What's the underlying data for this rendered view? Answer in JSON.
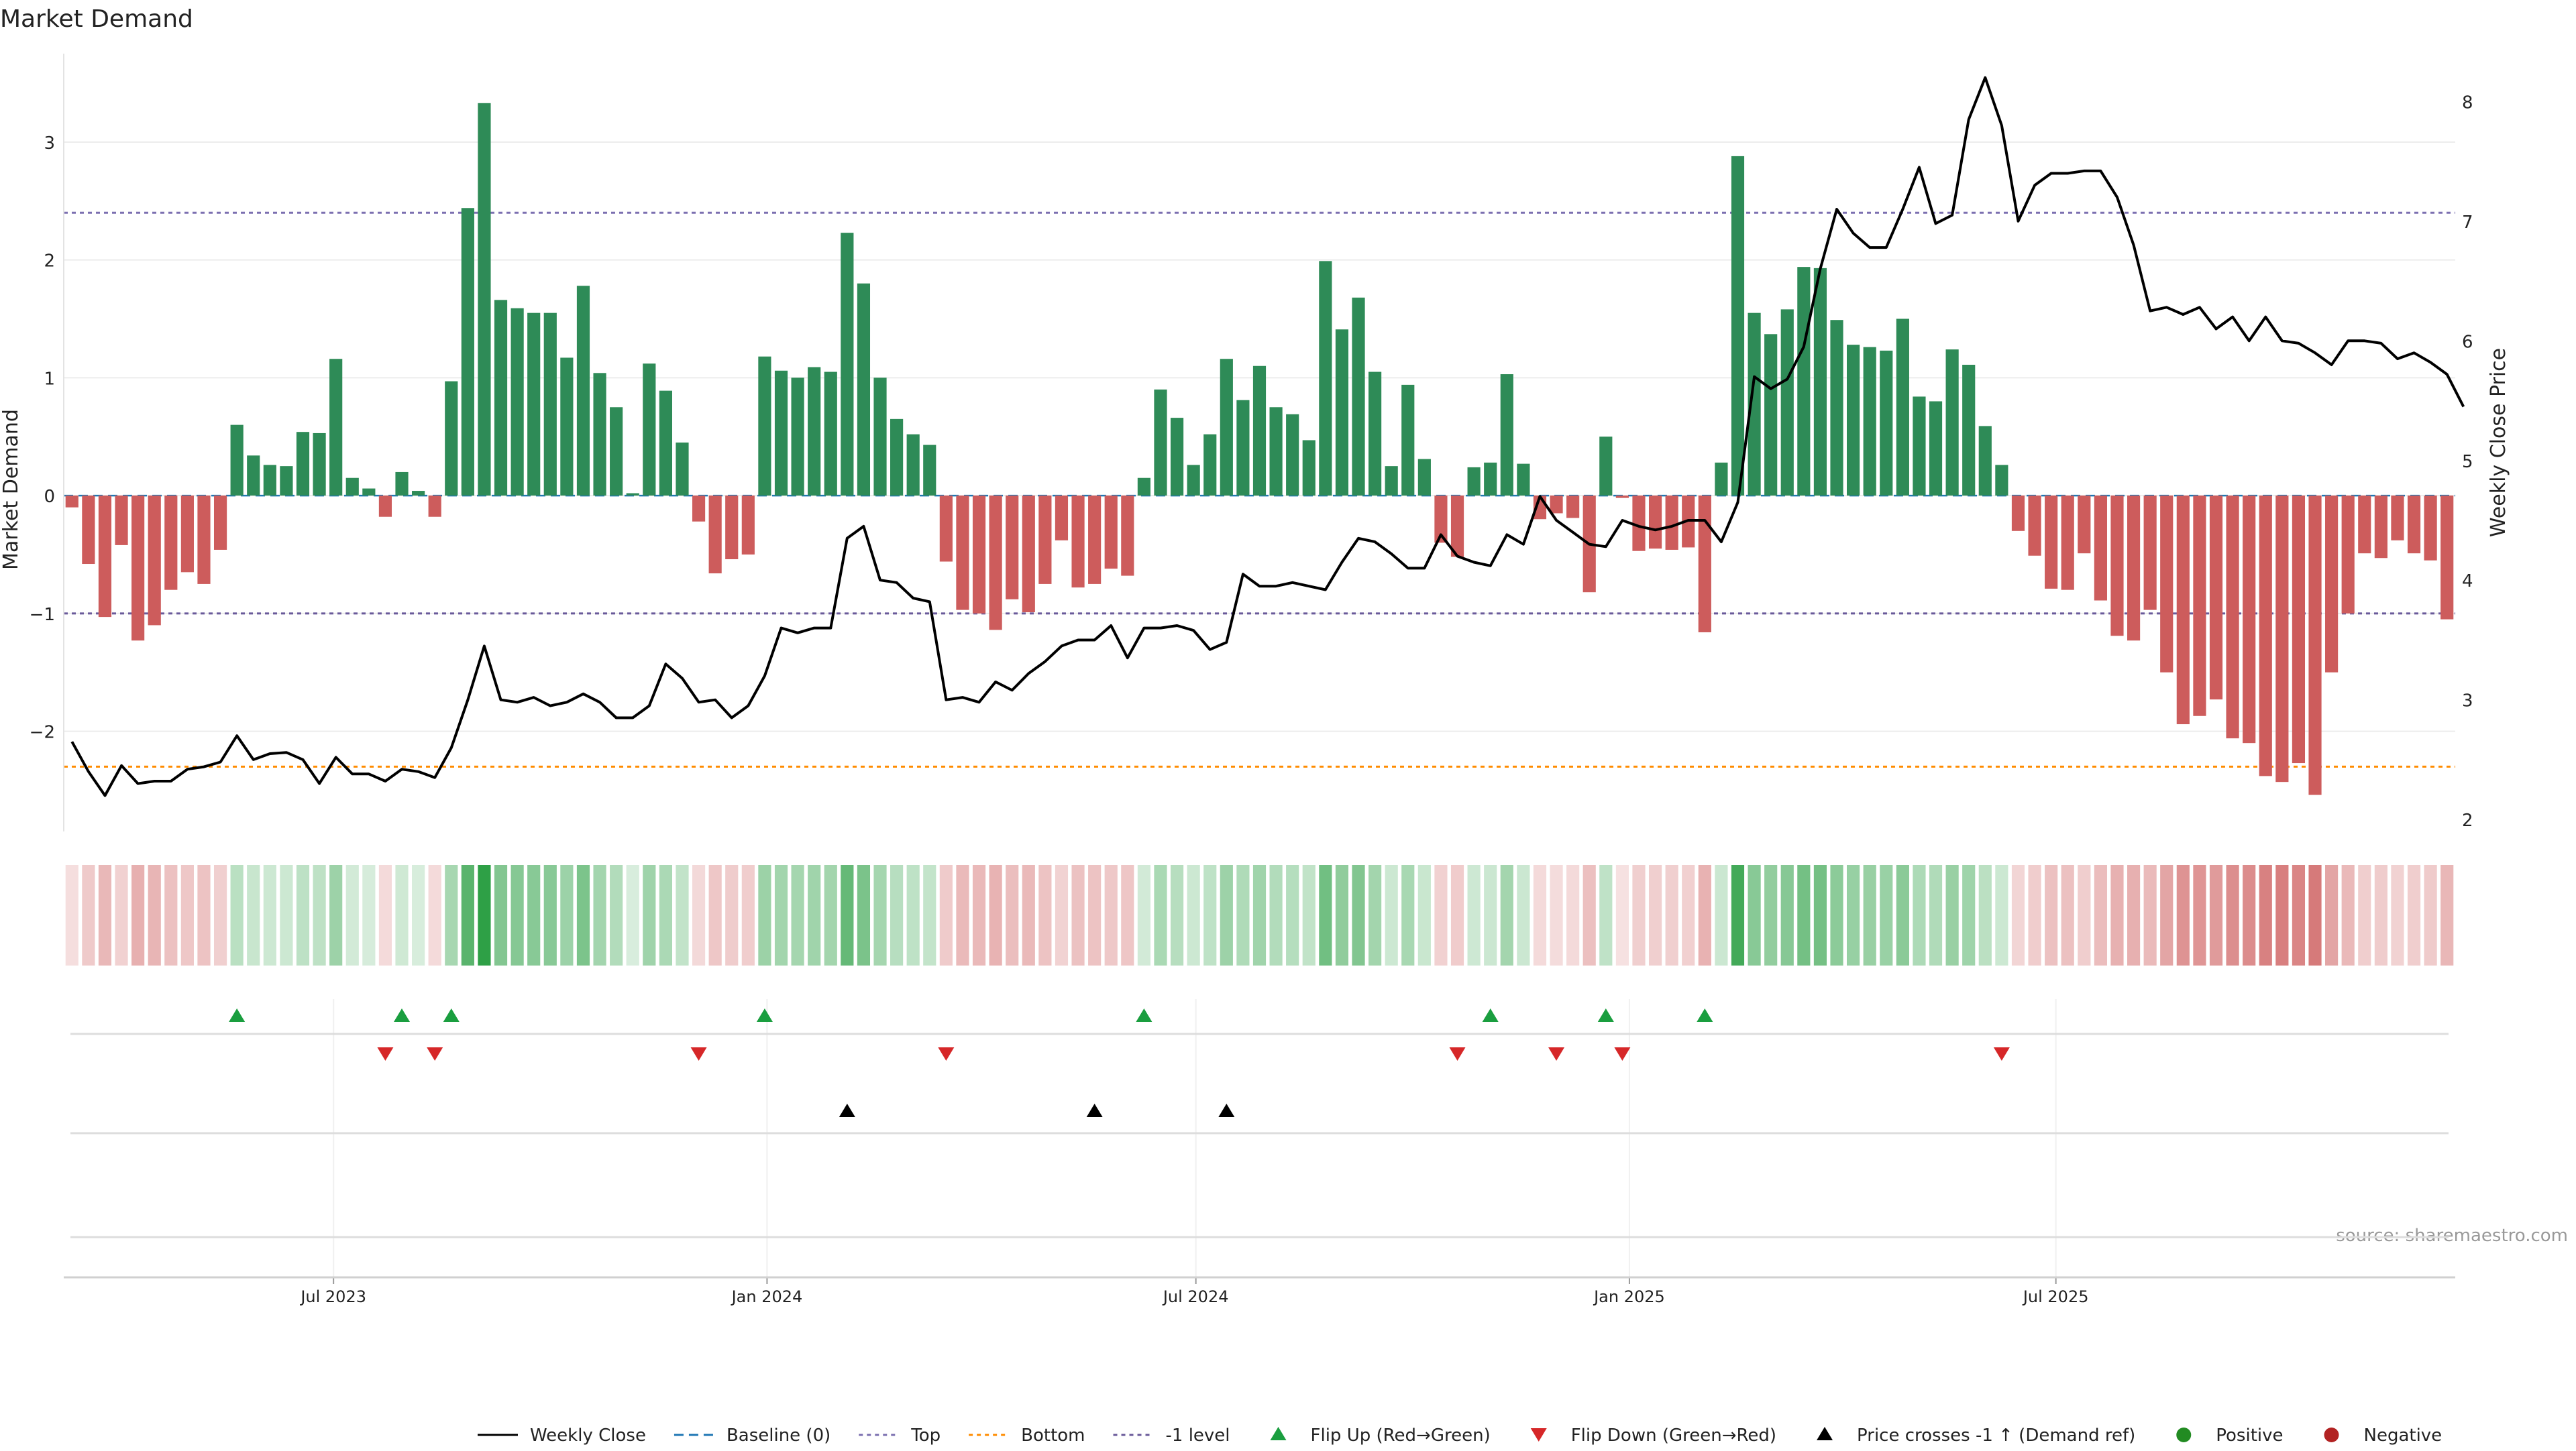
{
  "title": "Market Demand",
  "source_note": "source: sharemaestro.com",
  "colors": {
    "positive_bar": "#2e8b57",
    "negative_bar": "#cd5c5c",
    "line": "#000000",
    "top_line": "#7b6fb0",
    "bottom_line": "#ff8c00",
    "minus1_line": "#6a5a9a",
    "baseline": "#1f77b4",
    "flip_up": "#1a9e3f",
    "flip_down": "#d62728",
    "price_cross": "#000000",
    "positive_dot": "#228b22",
    "negative_dot": "#b22222"
  },
  "legend": [
    {
      "label": "Weekly Close",
      "marker": "line-solid",
      "color": "#000000"
    },
    {
      "label": "Baseline (0)",
      "marker": "line-dashed",
      "color": "#1f77b4"
    },
    {
      "label": "Top",
      "marker": "line-dotted",
      "color": "#7b6fb0"
    },
    {
      "label": "Bottom",
      "marker": "line-dotted",
      "color": "#ff8c00"
    },
    {
      "label": "-1 level",
      "marker": "line-dotted",
      "color": "#6a5a9a"
    },
    {
      "label": "Flip Up (Red→Green)",
      "marker": "triangle-up",
      "color": "#1a9e3f"
    },
    {
      "label": "Flip Down (Green→Red)",
      "marker": "triangle-down",
      "color": "#d62728"
    },
    {
      "label": "Price crosses -1 ↑ (Demand ref)",
      "marker": "triangle-up",
      "color": "#000000"
    },
    {
      "label": "Positive",
      "marker": "dot",
      "color": "#228b22"
    },
    {
      "label": "Negative",
      "marker": "dot",
      "color": "#b22222"
    }
  ],
  "chart_data": {
    "type": "bar",
    "title": "Market Demand",
    "ylabel": "Market Demand",
    "y2label": "Weekly Close Price",
    "ylim": [
      -2.85,
      3.75
    ],
    "y2lim": [
      1.9,
      8.4
    ],
    "yticks": [
      -2,
      -1,
      0,
      1,
      2,
      3
    ],
    "yticklabels": [
      "−2",
      "−1",
      "0",
      "1",
      "2",
      "3"
    ],
    "y2ticks": [
      2,
      3,
      4,
      5,
      6,
      7,
      8
    ],
    "x_start_date": "2023-03-12",
    "x_end_date": "2025-10-26",
    "x_week_spacing_days": 7,
    "xticks": [
      "2023-07-01",
      "2024-01-01",
      "2024-07-01",
      "2025-01-01",
      "2025-07-01"
    ],
    "xticklabels": [
      "Jul 2023",
      "Jan 2024",
      "Jul 2024",
      "Jan 2025",
      "Jul 2025"
    ],
    "reference_lines": {
      "top": 2.4,
      "bottom": -2.3,
      "minus_one": -1.0,
      "baseline": 0
    },
    "demand": [
      -0.1,
      -0.58,
      -1.03,
      -0.42,
      -1.23,
      -1.1,
      -0.8,
      -0.65,
      -0.75,
      -0.46,
      0.6,
      0.34,
      0.26,
      0.25,
      0.54,
      0.53,
      1.16,
      0.15,
      0.06,
      -0.18,
      0.2,
      0.04,
      -0.18,
      0.97,
      2.44,
      3.33,
      1.66,
      1.59,
      1.55,
      1.55,
      1.17,
      1.78,
      1.04,
      0.75,
      0.02,
      1.12,
      0.89,
      0.45,
      -0.22,
      -0.66,
      -0.54,
      -0.5,
      1.18,
      1.06,
      1.0,
      1.09,
      1.05,
      2.23,
      1.8,
      1.0,
      0.65,
      0.52,
      0.43,
      -0.56,
      -0.97,
      -1.0,
      -1.14,
      -0.88,
      -0.99,
      -0.75,
      -0.38,
      -0.78,
      -0.75,
      -0.62,
      -0.68,
      0.15,
      0.9,
      0.66,
      0.26,
      0.52,
      1.16,
      0.81,
      1.1,
      0.75,
      0.69,
      0.47,
      1.99,
      1.41,
      1.68,
      1.05,
      0.25,
      0.94,
      0.31,
      -0.4,
      -0.52,
      0.24,
      0.28,
      1.03,
      0.27,
      -0.2,
      -0.15,
      -0.19,
      -0.82,
      0.5,
      -0.02,
      -0.47,
      -0.45,
      -0.46,
      -0.44,
      -1.16,
      0.28,
      2.88,
      1.55,
      1.37,
      1.58,
      1.94,
      1.93,
      1.49,
      1.28,
      1.26,
      1.23,
      1.5,
      0.84,
      0.8,
      1.24,
      1.11,
      0.59,
      0.26,
      -0.3,
      -0.51,
      -0.79,
      -0.8,
      -0.49,
      -0.89,
      -1.19,
      -1.23,
      -0.97,
      -1.5,
      -1.94,
      -1.87,
      -1.73,
      -2.06,
      -2.1,
      -2.38,
      -2.43,
      -2.27,
      -2.54,
      -1.5,
      -1.0,
      -0.49,
      -0.53,
      -0.38,
      -0.49,
      -0.55,
      -1.05
    ],
    "weekly_close": [
      2.65,
      2.4,
      2.2,
      2.45,
      2.3,
      2.32,
      2.32,
      2.42,
      2.44,
      2.48,
      2.7,
      2.5,
      2.55,
      2.56,
      2.5,
      2.3,
      2.52,
      2.38,
      2.38,
      2.32,
      2.42,
      2.4,
      2.35,
      2.6,
      3.0,
      3.45,
      3.0,
      2.98,
      3.02,
      2.95,
      2.98,
      3.05,
      2.98,
      2.85,
      2.85,
      2.95,
      3.3,
      3.18,
      2.98,
      3.0,
      2.85,
      2.95,
      3.2,
      3.6,
      3.56,
      3.6,
      3.6,
      4.35,
      4.45,
      4.0,
      3.98,
      3.85,
      3.82,
      3.0,
      3.02,
      2.98,
      3.15,
      3.08,
      3.22,
      3.32,
      3.45,
      3.5,
      3.5,
      3.62,
      3.35,
      3.6,
      3.6,
      3.62,
      3.58,
      3.42,
      3.48,
      4.05,
      3.95,
      3.95,
      3.98,
      3.95,
      3.92,
      4.15,
      4.35,
      4.32,
      4.22,
      4.1,
      4.1,
      4.38,
      4.2,
      4.15,
      4.12,
      4.38,
      4.3,
      4.7,
      4.5,
      4.4,
      4.3,
      4.28,
      4.5,
      4.45,
      4.42,
      4.45,
      4.5,
      4.5,
      4.32,
      4.65,
      5.7,
      5.6,
      5.68,
      5.95,
      6.6,
      7.1,
      6.9,
      6.78,
      6.78,
      7.1,
      7.45,
      6.98,
      7.05,
      7.85,
      8.2,
      7.8,
      7.0,
      7.3,
      7.4,
      7.4,
      7.42,
      7.42,
      7.2,
      6.8,
      6.25,
      6.28,
      6.22,
      6.28,
      6.1,
      6.2,
      6.0,
      6.2,
      6.0,
      5.98,
      5.9,
      5.8,
      6.0,
      6.0,
      5.98,
      5.85,
      5.9,
      5.82,
      5.72,
      5.45
    ],
    "flip_up_weeks": [
      10,
      20,
      23,
      42,
      65,
      86,
      93,
      99
    ],
    "flip_down_weeks": [
      19,
      22,
      38,
      53,
      84,
      90,
      94,
      117
    ],
    "price_cross_weeks": [
      47,
      62,
      70
    ],
    "grid": true,
    "legend_position": "bottom-center"
  }
}
